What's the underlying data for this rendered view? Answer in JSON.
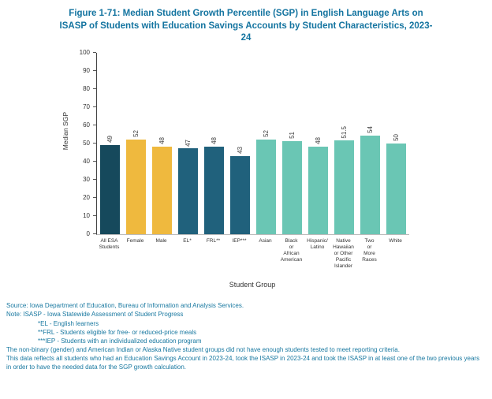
{
  "title": "Figure 1-71: Median Student Growth Percentile (SGP) in English Language Arts on ISASP of Students with Education Savings Accounts by Student Characteristics, 2023-24",
  "chart_data": {
    "type": "bar",
    "categories": [
      "All ESA\nStudents",
      "Female",
      "Male",
      "EL*",
      "FRL**",
      "IEP***",
      "Asian",
      "Black\nor\nAfrican\nAmerican",
      "Hispanic/\nLatino",
      "Native\nHawaiian\nor Other\nPacific\nIslander",
      "Two\nor\nMore\nRaces",
      "White"
    ],
    "values": [
      49,
      52,
      48,
      47,
      48,
      43,
      52,
      51,
      48,
      51.5,
      54,
      50
    ],
    "bar_colors": [
      "#16495c",
      "#efb93e",
      "#efb93e",
      "#20617c",
      "#20617c",
      "#20617c",
      "#6ac6b4",
      "#6ac6b4",
      "#6ac6b4",
      "#6ac6b4",
      "#6ac6b4",
      "#6ac6b4"
    ],
    "title": "Figure 1-71: Median Student Growth Percentile (SGP) in English Language Arts on ISASP of Students with Education Savings Accounts by Student Characteristics, 2023-24",
    "xlabel": "Student Group",
    "ylabel": "Median SGP",
    "ylim": [
      0,
      100
    ],
    "yticks": [
      0,
      10,
      20,
      30,
      40,
      50,
      60,
      70,
      80,
      90,
      100
    ],
    "grid": false,
    "legend": false
  },
  "notes": {
    "lines": [
      "Source: Iowa Department of Education, Bureau of Information and Analysis Services.",
      "Note: ISASP - Iowa Statewide Assessment of Student Progress",
      "*EL - English learners",
      "**FRL - Students eligible for free- or reduced-price meals",
      "***IEP - Students with an individualized education program",
      "The non-binary (gender) and American Indian or Alaska Native student groups did not have enough students tested to meet reporting criteria.",
      "This data reflects all students who had an Education Savings Account in 2023-24, took the ISASP in 2023-24 and took the ISASP in at least one of the two previous years in order to have the needed data for the SGP growth calculation."
    ]
  }
}
